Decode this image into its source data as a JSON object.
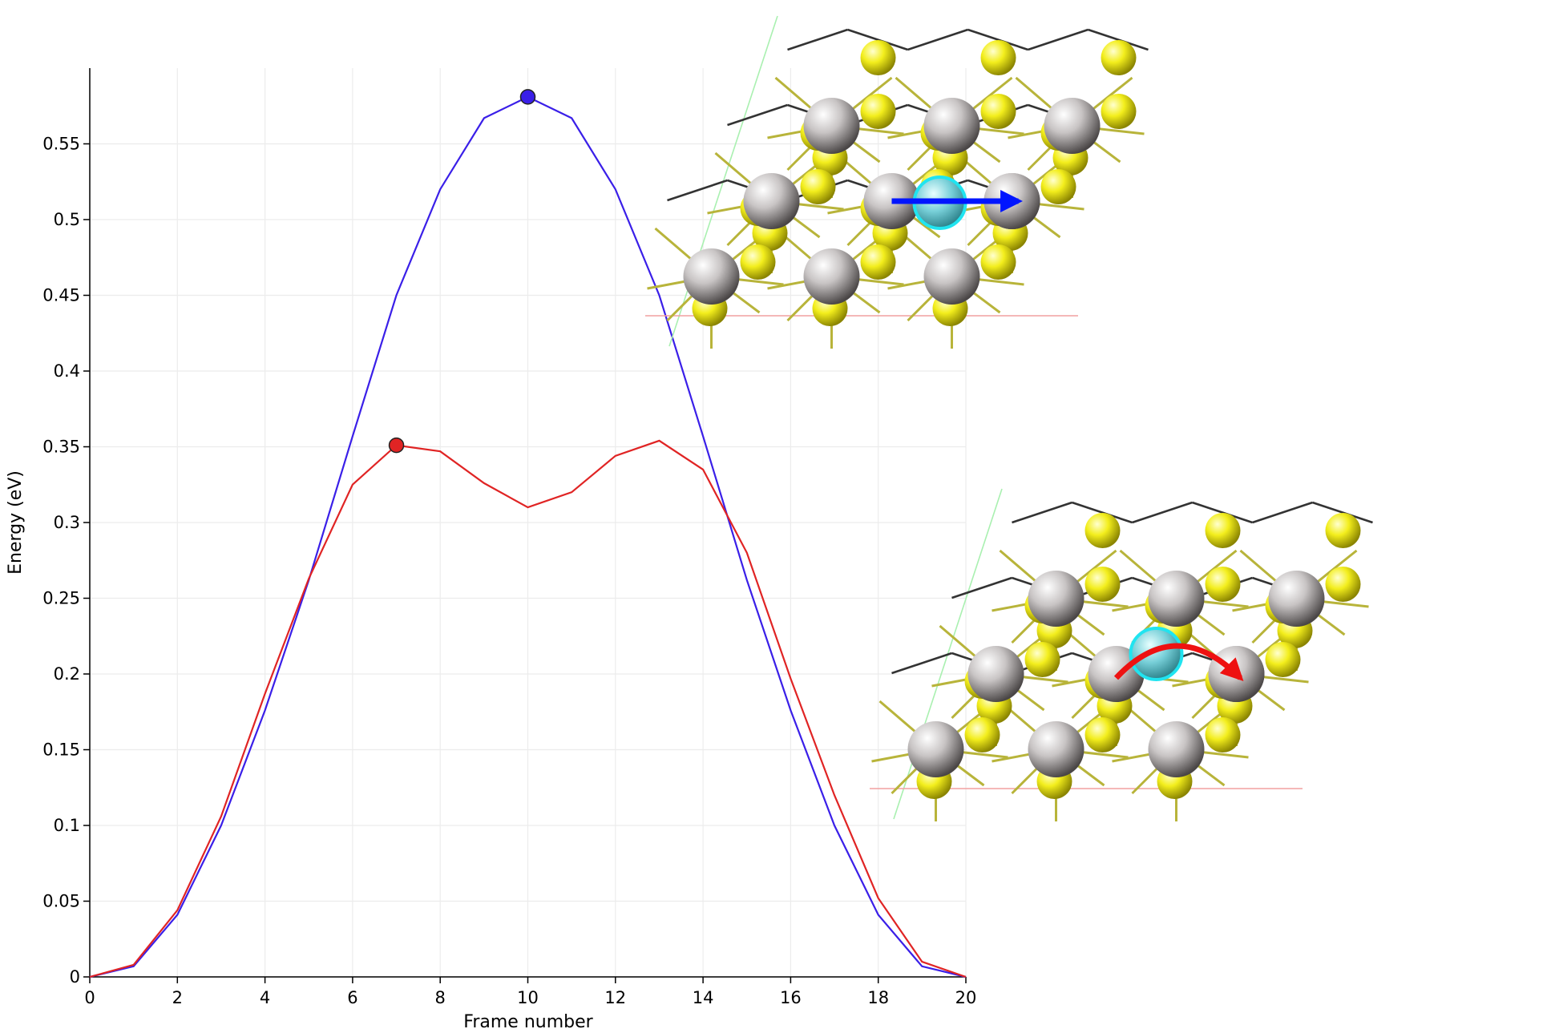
{
  "chart_data": {
    "type": "line",
    "xlabel": "Frame number",
    "ylabel": "Energy (eV)",
    "xlim": [
      0,
      20
    ],
    "ylim": [
      0,
      0.6
    ],
    "grid": true,
    "x_ticks": [
      "0",
      "2",
      "4",
      "6",
      "8",
      "10",
      "12",
      "14",
      "16",
      "18",
      "20"
    ],
    "y_ticks": [
      "0",
      "0.05",
      "0.1",
      "0.15",
      "0.2",
      "0.25",
      "0.3",
      "0.35",
      "0.4",
      "0.45",
      "0.5",
      "0.55"
    ],
    "x": [
      0,
      1,
      2,
      3,
      4,
      5,
      6,
      7,
      8,
      9,
      10,
      11,
      12,
      13,
      14,
      15,
      16,
      17,
      18,
      19,
      20
    ],
    "series": [
      {
        "color": "#3a1fe8",
        "values": [
          0,
          0.007,
          0.041,
          0.1,
          0.176,
          0.262,
          0.357,
          0.45,
          0.52,
          0.567,
          0.581,
          0.567,
          0.52,
          0.45,
          0.357,
          0.262,
          0.176,
          0.1,
          0.041,
          0.007,
          0
        ],
        "highlight": {
          "x": 10,
          "y": 0.581
        }
      },
      {
        "color": "#e02424",
        "values": [
          0,
          0.008,
          0.044,
          0.106,
          0.187,
          0.263,
          0.325,
          0.351,
          0.347,
          0.326,
          0.31,
          0.32,
          0.344,
          0.354,
          0.335,
          0.28,
          0.197,
          0.12,
          0.052,
          0.01,
          0
        ],
        "highlight": {
          "x": 7,
          "y": 0.351
        }
      }
    ],
    "insets": [
      {
        "name": "straight-path-structure",
        "arrow": "straight",
        "arrow_color": "#0015ff"
      },
      {
        "name": "curved-path-structure",
        "arrow": "curved",
        "arrow_color": "#ee1111"
      }
    ]
  }
}
